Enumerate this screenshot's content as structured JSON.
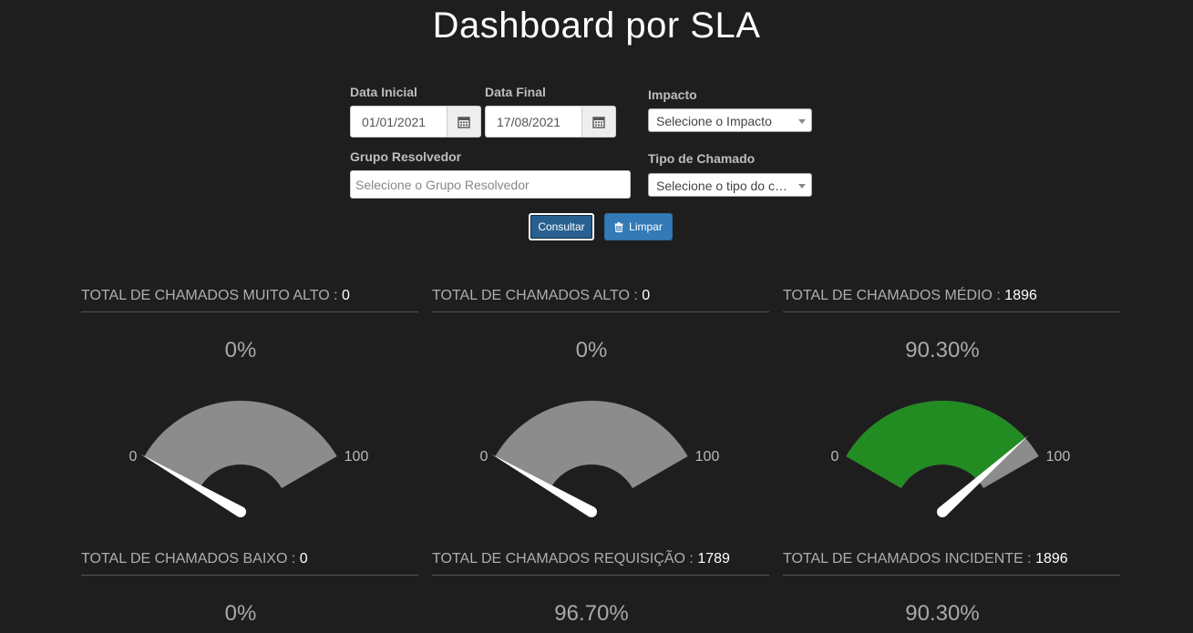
{
  "page": {
    "title": "Dashboard por SLA"
  },
  "filters": {
    "data_inicial": {
      "label": "Data Inicial",
      "value": "01/01/2021"
    },
    "data_final": {
      "label": "Data Final",
      "value": "17/08/2021"
    },
    "impacto": {
      "label": "Impacto",
      "selected": "Selecione o Impacto"
    },
    "grupo_resolvedor": {
      "label": "Grupo Resolvedor",
      "placeholder": "Selecione o Grupo Resolvedor"
    },
    "tipo_chamado": {
      "label": "Tipo de Chamado",
      "selected": "Selecione o tipo do c…"
    }
  },
  "buttons": {
    "consultar": "Consultar",
    "limpar": "Limpar"
  },
  "colors": {
    "gauge_empty": "#8c8c8c",
    "gauge_fill": "#228b22",
    "needle": "#ffffff",
    "accent": "#337ab7"
  },
  "gauges": [
    {
      "title": "TOTAL DE CHAMADOS MUITO ALTO : ",
      "count": "0",
      "percent_label": "0%",
      "value": 0,
      "min_label": "0",
      "max_label": "100"
    },
    {
      "title": "TOTAL DE CHAMADOS ALTO : ",
      "count": "0",
      "percent_label": "0%",
      "value": 0,
      "min_label": "0",
      "max_label": "100"
    },
    {
      "title": "TOTAL DE CHAMADOS MÉDIO : ",
      "count": "1896",
      "percent_label": "90.30%",
      "value": 90.3,
      "min_label": "0",
      "max_label": "100"
    },
    {
      "title": "TOTAL DE CHAMADOS BAIXO : ",
      "count": "0",
      "percent_label": "0%",
      "value": 0,
      "min_label": "",
      "max_label": ""
    },
    {
      "title": "TOTAL DE CHAMADOS REQUISIÇÃO : ",
      "count": "1789",
      "percent_label": "96.70%",
      "value": 96.7,
      "min_label": "",
      "max_label": ""
    },
    {
      "title": "TOTAL DE CHAMADOS INCIDENTE : ",
      "count": "1896",
      "percent_label": "90.30%",
      "value": 90.3,
      "min_label": "",
      "max_label": ""
    }
  ]
}
